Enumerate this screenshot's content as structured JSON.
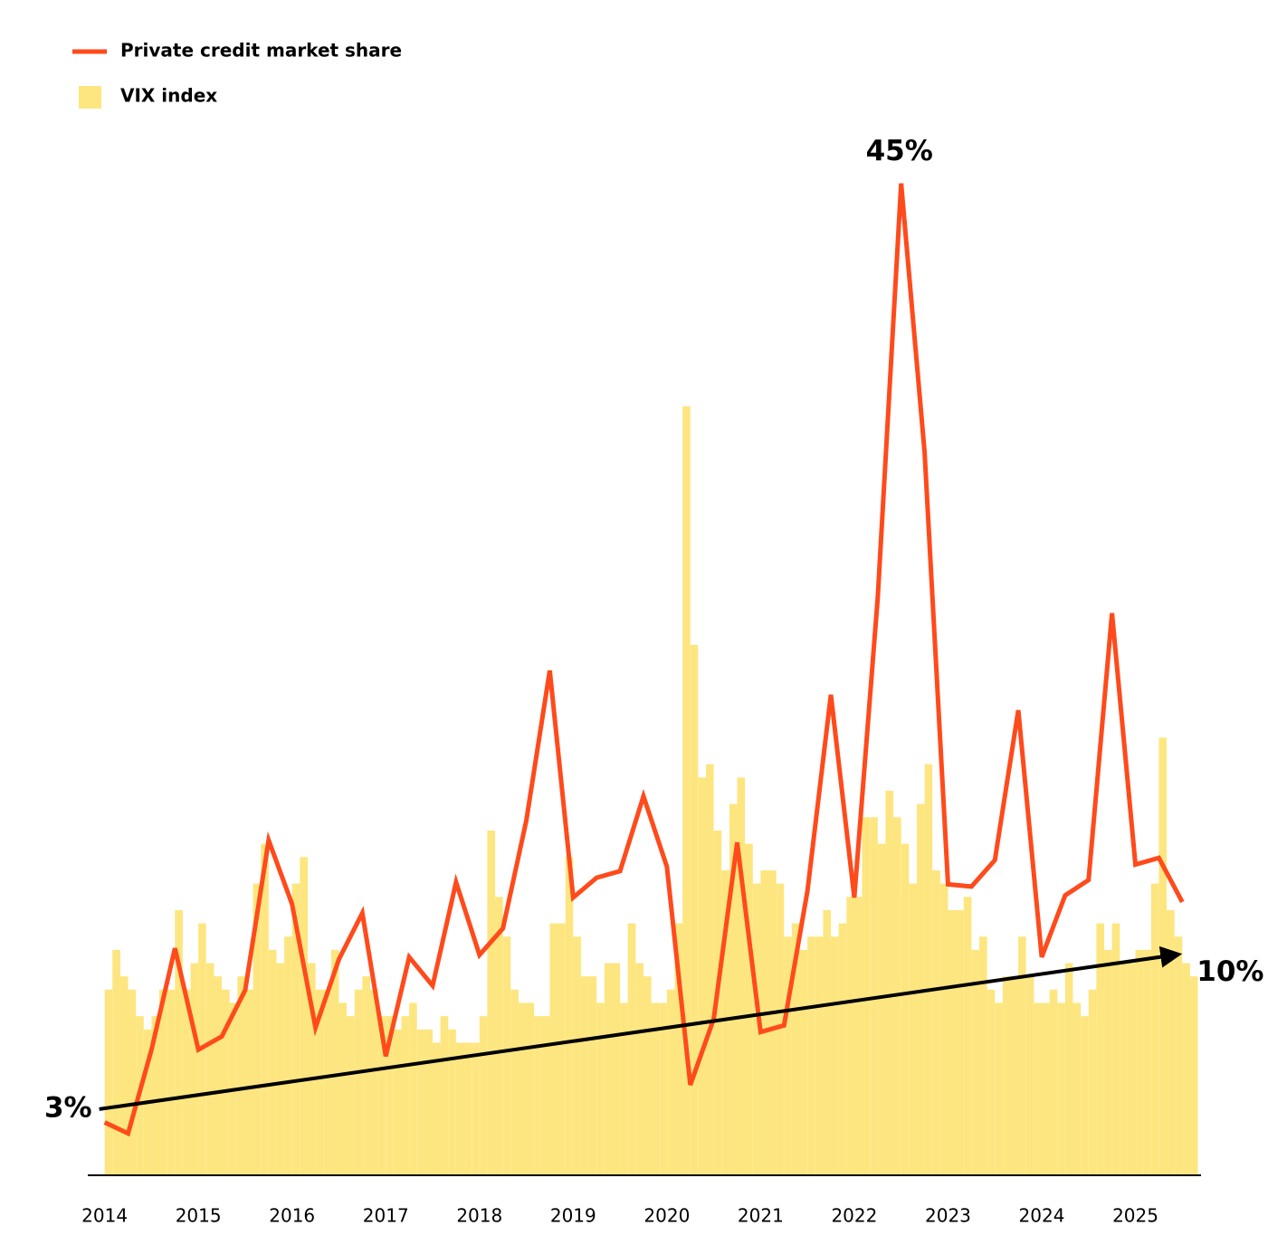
{
  "chart_data": {
    "type": "combo",
    "series": [
      {
        "name": "Private credit market share",
        "type": "line",
        "color": "#ff4a1c",
        "x": [
          2014,
          2014.25,
          2014.5,
          2014.75,
          2015,
          2015.25,
          2015.5,
          2015.75,
          2016,
          2016.25,
          2016.5,
          2016.75,
          2017,
          2017.25,
          2017.5,
          2017.75,
          2018,
          2018.25,
          2018.5,
          2018.75,
          2019,
          2019.25,
          2019.5,
          2019.75,
          2020,
          2020.25,
          2020.5,
          2020.75,
          2021,
          2021.25,
          2021.5,
          2021.75,
          2022,
          2022.25,
          2022.5,
          2022.75,
          2023,
          2023.25,
          2023.5,
          2023.75,
          2024,
          2024.25,
          2024.5,
          2024.75,
          2025,
          2025.25,
          2025.5
        ],
        "values": [
          2.4,
          1.9,
          5.7,
          10.3,
          5.7,
          6.3,
          8.4,
          15.2,
          12.3,
          6.7,
          9.8,
          11.9,
          5.4,
          9.9,
          8.6,
          13.3,
          10.0,
          11.2,
          16.1,
          22.9,
          12.6,
          13.5,
          13.8,
          17.2,
          14.0,
          4.1,
          7.1,
          15.1,
          6.5,
          6.8,
          12.9,
          21.8,
          12.6,
          26.2,
          45.0,
          32.8,
          13.2,
          13.1,
          14.3,
          21.1,
          9.9,
          12.7,
          13.4,
          25.5,
          14.1,
          14.4,
          12.4
        ]
      },
      {
        "name": "VIX index",
        "type": "bar",
        "axis": "y2",
        "color": "#fde680",
        "x": [
          2014,
          2014.083,
          2014.167,
          2014.25,
          2014.333,
          2014.417,
          2014.5,
          2014.583,
          2014.667,
          2014.75,
          2014.833,
          2014.917,
          2015,
          2015.083,
          2015.167,
          2015.25,
          2015.333,
          2015.417,
          2015.5,
          2015.583,
          2015.667,
          2015.75,
          2015.833,
          2015.917,
          2016,
          2016.083,
          2016.167,
          2016.25,
          2016.333,
          2016.417,
          2016.5,
          2016.583,
          2016.667,
          2016.75,
          2016.833,
          2016.917,
          2017,
          2017.083,
          2017.167,
          2017.25,
          2017.333,
          2017.417,
          2017.5,
          2017.583,
          2017.667,
          2017.75,
          2017.833,
          2017.917,
          2018,
          2018.083,
          2018.167,
          2018.25,
          2018.333,
          2018.417,
          2018.5,
          2018.583,
          2018.667,
          2018.75,
          2018.833,
          2018.917,
          2019,
          2019.083,
          2019.167,
          2019.25,
          2019.333,
          2019.417,
          2019.5,
          2019.583,
          2019.667,
          2019.75,
          2019.833,
          2019.917,
          2020,
          2020.083,
          2020.167,
          2020.25,
          2020.333,
          2020.417,
          2020.5,
          2020.583,
          2020.667,
          2020.75,
          2020.833,
          2020.917,
          2021,
          2021.083,
          2021.167,
          2021.25,
          2021.333,
          2021.417,
          2021.5,
          2021.583,
          2021.667,
          2021.75,
          2021.833,
          2021.917,
          2022,
          2022.083,
          2022.167,
          2022.25,
          2022.333,
          2022.417,
          2022.5,
          2022.583,
          2022.667,
          2022.75,
          2022.833,
          2022.917,
          2023,
          2023.083,
          2023.167,
          2023.25,
          2023.333,
          2023.417,
          2023.5,
          2023.583,
          2023.667,
          2023.75,
          2023.833,
          2023.917,
          2024,
          2024.083,
          2024.167,
          2024.25,
          2024.333,
          2024.417,
          2024.5,
          2024.583,
          2024.667,
          2024.75,
          2024.833,
          2024.917,
          2025,
          2025.083,
          2025.167,
          2025.25,
          2025.333,
          2025.417,
          2025.5,
          2025.583
        ],
        "values": [
          14,
          17,
          15,
          14,
          12,
          11,
          12,
          14,
          14,
          20,
          14,
          16,
          19,
          16,
          15,
          14,
          13,
          15,
          14,
          22,
          25,
          17,
          16,
          18,
          22,
          24,
          16,
          14,
          14,
          17,
          13,
          12,
          14,
          15,
          14,
          12,
          12,
          11,
          12,
          13,
          11,
          11,
          10,
          12,
          11,
          10,
          10,
          10,
          12,
          26,
          21,
          18,
          14,
          13,
          13,
          12,
          12,
          19,
          19,
          24,
          18,
          15,
          15,
          13,
          16,
          16,
          13,
          19,
          16,
          15,
          13,
          13,
          14,
          19,
          58,
          40,
          30,
          31,
          26,
          23,
          28,
          30,
          25,
          22,
          23,
          23,
          22,
          18,
          19,
          17,
          18,
          18,
          20,
          18,
          19,
          21,
          21,
          27,
          27,
          25,
          29,
          27,
          25,
          22,
          28,
          31,
          23,
          22,
          20,
          20,
          21,
          17,
          18,
          14,
          13,
          15,
          15,
          18,
          15,
          13,
          13,
          14,
          13,
          16,
          13,
          12,
          14,
          19,
          17,
          19,
          16,
          16,
          17,
          17,
          22,
          33,
          20,
          18,
          16,
          15
        ]
      }
    ],
    "xlim": [
      2013.82,
      2025.7
    ],
    "xticks": [
      2014,
      2015,
      2016,
      2017,
      2018,
      2019,
      2020,
      2021,
      2022,
      2023,
      2024,
      2025
    ],
    "ylim": [
      0,
      49.75
    ],
    "y2lim": [
      0,
      82.7
    ],
    "annotations": [
      {
        "value": 3,
        "label": "3%"
      },
      {
        "value": 45,
        "label": "45%"
      },
      {
        "value": 10,
        "label": "10%"
      }
    ]
  }
}
